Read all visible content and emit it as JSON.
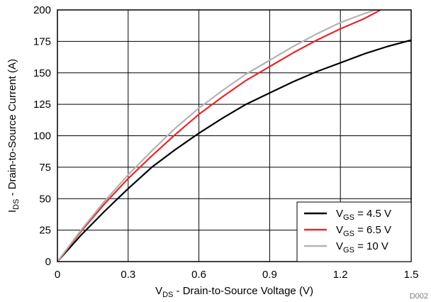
{
  "chart_data": {
    "type": "line",
    "xlabel": {
      "main": "V",
      "sub": "DS",
      "rest": " - Drain-to-Source Voltage (V)"
    },
    "ylabel": {
      "main": "I",
      "sub": "DS",
      "rest": " - Drain-to-Source Current (A)"
    },
    "xlim": [
      0,
      1.5
    ],
    "ylim": [
      0,
      200
    ],
    "x_ticks": [
      "0",
      "0.3",
      "0.6",
      "0.9",
      "1.2",
      "1.5"
    ],
    "y_ticks": [
      "0",
      "25",
      "50",
      "75",
      "100",
      "125",
      "150",
      "175",
      "200"
    ],
    "grid": true,
    "legend_position": "bottom-right",
    "figure_id": "D002",
    "series": [
      {
        "name": {
          "main": "V",
          "sub": "GS",
          "rest": " = 4.5 V"
        },
        "color": "#000000",
        "x": [
          0,
          0.1,
          0.2,
          0.3,
          0.4,
          0.5,
          0.6,
          0.7,
          0.8,
          0.9,
          1.0,
          1.1,
          1.2,
          1.3,
          1.4,
          1.5
        ],
        "y": [
          0,
          21,
          40,
          58,
          75,
          89,
          102,
          114,
          125,
          134,
          143,
          151,
          158,
          165,
          171,
          176
        ]
      },
      {
        "name": {
          "main": "V",
          "sub": "GS",
          "rest": " = 6.5 V"
        },
        "color": "#e8262a",
        "x": [
          0,
          0.1,
          0.2,
          0.3,
          0.4,
          0.5,
          0.6,
          0.7,
          0.8,
          0.9,
          1.0,
          1.1,
          1.2,
          1.3,
          1.37
        ],
        "y": [
          0,
          24,
          46,
          66,
          84,
          101,
          117,
          131,
          144,
          155,
          166,
          176,
          185,
          193,
          200
        ]
      },
      {
        "name": {
          "main": "V",
          "sub": "GS",
          "rest": " = 10 V"
        },
        "color": "#b3b3b3",
        "x": [
          0,
          0.1,
          0.2,
          0.3,
          0.4,
          0.5,
          0.6,
          0.7,
          0.8,
          0.9,
          1.0,
          1.1,
          1.2,
          1.3,
          1.35
        ],
        "y": [
          0,
          25,
          48,
          69,
          88,
          106,
          122,
          136,
          149,
          160,
          171,
          181,
          190,
          197,
          200
        ]
      }
    ]
  }
}
